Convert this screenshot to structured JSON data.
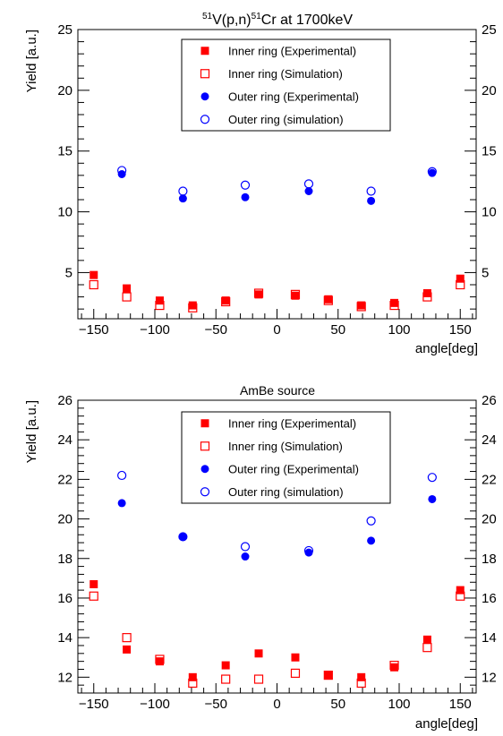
{
  "chart_data": [
    {
      "type": "scatter",
      "title_sup1": "51",
      "title_mid": "V(p,n)",
      "title_sup2": "51",
      "title_end": "Cr at 1700keV",
      "xlabel": "angle[deg]",
      "ylabel": "Yield [a.u.]",
      "xlim": [
        -163,
        163
      ],
      "ylim": [
        1.2,
        25
      ],
      "xticks": [
        -150,
        -100,
        -50,
        0,
        50,
        100,
        150
      ],
      "xtick_labels": [
        "−150",
        "−100",
        "−50",
        "0",
        "50",
        "100",
        "150"
      ],
      "yticks": [
        5,
        10,
        15,
        20,
        25
      ],
      "ytick_labels": [
        "5",
        "10",
        "15",
        "20",
        "25"
      ],
      "legend_position": "top-center",
      "series": [
        {
          "name": "Inner ring (Experimental)",
          "marker": "filled-square",
          "color": "#ff0000",
          "points": [
            [
              -150,
              4.8
            ],
            [
              -123,
              3.7
            ],
            [
              -96,
              2.7
            ],
            [
              -69,
              2.3
            ],
            [
              -42,
              2.7
            ],
            [
              -15,
              3.2
            ],
            [
              15,
              3.1
            ],
            [
              42,
              2.8
            ],
            [
              69,
              2.3
            ],
            [
              96,
              2.5
            ],
            [
              123,
              3.3
            ],
            [
              150,
              4.5
            ]
          ]
        },
        {
          "name": "Inner ring (Simulation)",
          "marker": "open-square",
          "color": "#ff0000",
          "points": [
            [
              -150,
              4.0
            ],
            [
              -123,
              3.0
            ],
            [
              -96,
              2.3
            ],
            [
              -69,
              2.1
            ],
            [
              -42,
              2.6
            ],
            [
              -15,
              3.3
            ],
            [
              15,
              3.2
            ],
            [
              42,
              2.7
            ],
            [
              69,
              2.2
            ],
            [
              96,
              2.3
            ],
            [
              123,
              3.0
            ],
            [
              150,
              4.0
            ]
          ]
        },
        {
          "name": "Outer ring (Experimental)",
          "marker": "filled-circle",
          "color": "#0000ff",
          "points": [
            [
              -127,
              13.1
            ],
            [
              -77,
              11.1
            ],
            [
              -26,
              11.2
            ],
            [
              26,
              11.7
            ],
            [
              77,
              10.9
            ],
            [
              127,
              13.2
            ]
          ]
        },
        {
          "name": "Outer ring (simulation)",
          "marker": "open-circle",
          "color": "#0000ff",
          "points": [
            [
              -127,
              13.4
            ],
            [
              -77,
              11.7
            ],
            [
              -26,
              12.2
            ],
            [
              26,
              12.3
            ],
            [
              77,
              11.7
            ],
            [
              127,
              13.3
            ]
          ]
        }
      ]
    },
    {
      "type": "scatter",
      "title": "AmBe source",
      "xlabel": "angle[deg]",
      "ylabel": "Yield [a.u.]",
      "xlim": [
        -163,
        163
      ],
      "ylim": [
        11.2,
        26
      ],
      "xticks": [
        -150,
        -100,
        -50,
        0,
        50,
        100,
        150
      ],
      "xtick_labels": [
        "−150",
        "−100",
        "−50",
        "0",
        "50",
        "100",
        "150"
      ],
      "yticks": [
        12,
        14,
        16,
        18,
        20,
        22,
        24,
        26
      ],
      "ytick_labels": [
        "12",
        "14",
        "16",
        "18",
        "20",
        "22",
        "24",
        "26"
      ],
      "legend_position": "top-center",
      "series": [
        {
          "name": "Inner ring (Experimental)",
          "marker": "filled-square",
          "color": "#ff0000",
          "points": [
            [
              -150,
              16.7
            ],
            [
              -123,
              13.4
            ],
            [
              -96,
              12.8
            ],
            [
              -69,
              12.0
            ],
            [
              -42,
              12.6
            ],
            [
              -15,
              13.2
            ],
            [
              15,
              13.0
            ],
            [
              42,
              12.1
            ],
            [
              69,
              12.0
            ],
            [
              96,
              12.5
            ],
            [
              123,
              13.9
            ],
            [
              150,
              16.4
            ]
          ]
        },
        {
          "name": "Inner ring (Simulation)",
          "marker": "open-square",
          "color": "#ff0000",
          "points": [
            [
              -150,
              16.1
            ],
            [
              -123,
              14.0
            ],
            [
              -96,
              12.9
            ],
            [
              -69,
              11.7
            ],
            [
              -42,
              11.9
            ],
            [
              -15,
              11.9
            ],
            [
              15,
              12.2
            ],
            [
              42,
              12.1
            ],
            [
              69,
              11.7
            ],
            [
              96,
              12.6
            ],
            [
              123,
              13.5
            ],
            [
              150,
              16.1
            ]
          ]
        },
        {
          "name": "Outer ring (Experimental)",
          "marker": "filled-circle",
          "color": "#0000ff",
          "points": [
            [
              -127,
              20.8
            ],
            [
              -77,
              19.1
            ],
            [
              -26,
              18.1
            ],
            [
              26,
              18.3
            ],
            [
              77,
              18.9
            ],
            [
              127,
              21.0
            ]
          ]
        },
        {
          "name": "Outer ring (simulation)",
          "marker": "open-circle",
          "color": "#0000ff",
          "points": [
            [
              -127,
              22.2
            ],
            [
              -77,
              19.1
            ],
            [
              -26,
              18.6
            ],
            [
              26,
              18.4
            ],
            [
              77,
              19.9
            ],
            [
              127,
              22.1
            ]
          ]
        }
      ]
    }
  ]
}
